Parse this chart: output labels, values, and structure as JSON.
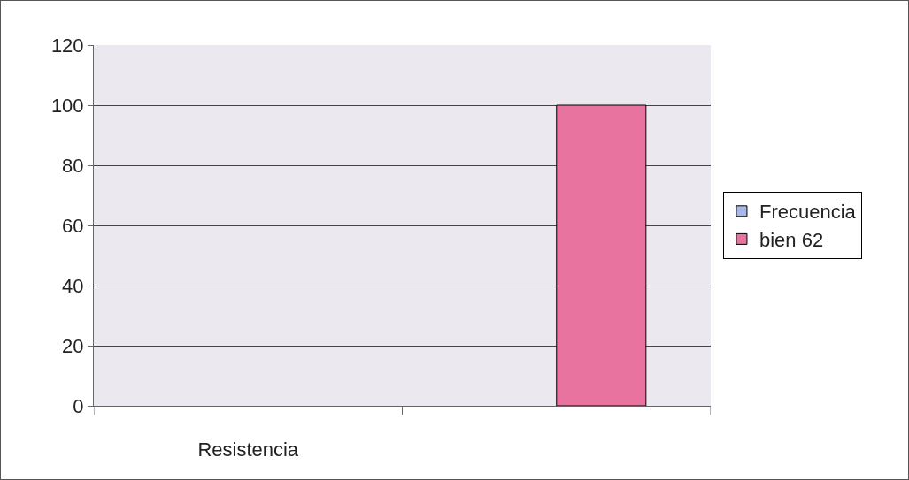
{
  "chart_data": {
    "type": "bar",
    "categories": [
      "Resistencia",
      null
    ],
    "series": [
      {
        "name": "Frecuencia",
        "color": "#a8b8e8",
        "values": [
          null,
          null
        ]
      },
      {
        "name": "bien 62",
        "color": "#e8739e",
        "values": [
          null,
          100
        ]
      }
    ],
    "ylim": [
      0,
      120
    ],
    "yticks": [
      0,
      20,
      40,
      60,
      80,
      100,
      120
    ],
    "grid": "y",
    "legend": "right"
  }
}
